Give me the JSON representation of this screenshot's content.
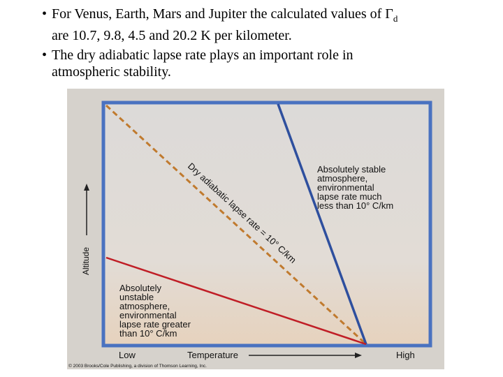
{
  "bullets": [
    {
      "prefix": "For Venus, Earth, Mars and Jupiter the calculated values of Γ",
      "subscript": "d",
      "line2": "are 10.7, 9.8, 4.5 and 20.2 K per kilometer."
    },
    {
      "line1": "The dry adiabatic lapse rate plays an important role in",
      "line2": "atmospheric stability."
    }
  ],
  "figure": {
    "y_axis_label": "Altitude",
    "x_axis": {
      "low": "Low",
      "title": "Temperature",
      "high": "High"
    },
    "dry_line_label": "Dry adiabatic lapse rate = 10° C/km",
    "stable_label": [
      "Absolutely stable",
      "atmosphere,",
      "environmental",
      "lapse rate much",
      "less than 10° C/km"
    ],
    "unstable_label": [
      "Absolutely",
      "unstable",
      "atmosphere,",
      "environmental",
      "lapse rate greater",
      "than 10° C/km"
    ],
    "copyright": "© 2003 Brooks/Cole Publishing, a division of Thomson Learning, Inc.",
    "colors": {
      "frame": "#4a72c0",
      "stable_line": "#2e4f9e",
      "dry_line": "#c07a2e",
      "unstable_line": "#c01e26"
    }
  }
}
